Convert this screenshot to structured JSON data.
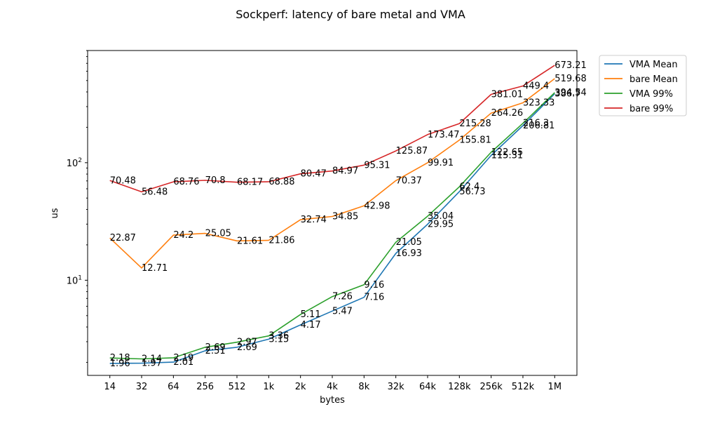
{
  "chart_data": {
    "type": "line",
    "title": "Sockperf: latency of bare metal and VMA",
    "xlabel": "bytes",
    "ylabel": "us",
    "yscale": "log",
    "ylim": [
      1.55,
      900
    ],
    "legend_position": "outside-top-right",
    "categories": [
      "14",
      "32",
      "64",
      "256",
      "512",
      "1k",
      "2k",
      "4k",
      "8k",
      "32k",
      "64k",
      "128k",
      "256k",
      "512k",
      "1M"
    ],
    "y_ticks": [
      {
        "value": 10,
        "base": "10",
        "exp": "1"
      },
      {
        "value": 100,
        "base": "10",
        "exp": "2"
      }
    ],
    "series": [
      {
        "name": "VMA Mean",
        "color": "#1f77b4",
        "values": [
          1.96,
          1.97,
          2.01,
          2.51,
          2.69,
          3.15,
          4.17,
          5.47,
          7.16,
          16.93,
          29.95,
          56.73,
          115.31,
          206.81,
          386.7
        ]
      },
      {
        "name": "bare Mean",
        "color": "#ff7f0e",
        "values": [
          22.87,
          12.71,
          24.2,
          25.05,
          21.61,
          21.86,
          32.74,
          34.85,
          42.98,
          70.37,
          99.91,
          155.81,
          264.26,
          323.33,
          519.68
        ]
      },
      {
        "name": "VMA 99%",
        "color": "#2ca02c",
        "values": [
          2.18,
          2.14,
          2.19,
          2.69,
          2.97,
          3.36,
          5.11,
          7.26,
          9.16,
          21.05,
          35.04,
          62.4,
          122.65,
          216.3,
          394.54
        ]
      },
      {
        "name": "bare 99%",
        "color": "#d62728",
        "values": [
          70.48,
          56.48,
          68.76,
          70.8,
          68.17,
          68.88,
          80.47,
          84.97,
          95.31,
          125.87,
          173.47,
          215.28,
          381.01,
          449.4,
          673.21
        ]
      }
    ]
  }
}
